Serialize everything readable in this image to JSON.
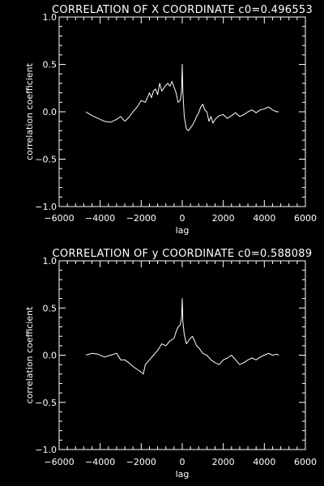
{
  "chart_data": [
    {
      "type": "line",
      "title": "CORRELATION OF X COORDINATE c0=0.496553",
      "xlabel": "lag",
      "ylabel": "correlation coefficient",
      "xlim": [
        -6000,
        6000
      ],
      "ylim": [
        -1.0,
        1.0
      ],
      "xticks": [
        -6000,
        -4000,
        -2000,
        0,
        2000,
        4000,
        6000
      ],
      "xtick_labels": [
        "−6000",
        "−4000",
        "−2000",
        "0",
        "2000",
        "4000",
        "6000"
      ],
      "yticks": [
        -1.0,
        -0.5,
        0.0,
        0.5,
        1.0
      ],
      "ytick_labels": [
        "−1.0",
        "−0.5",
        "0.0",
        "0.5",
        "1.0"
      ],
      "grid": false,
      "series": [
        {
          "x": [
            -4700,
            -4400,
            -4100,
            -3800,
            -3500,
            -3200,
            -3000,
            -2800,
            -2600,
            -2400,
            -2200,
            -2000,
            -1800,
            -1600,
            -1500,
            -1400,
            -1300,
            -1200,
            -1100,
            -1000,
            -900,
            -800,
            -700,
            -600,
            -500,
            -400,
            -300,
            -200,
            -100,
            -30,
            0,
            30,
            100,
            200,
            300,
            400,
            500,
            600,
            700,
            800,
            900,
            1000,
            1100,
            1200,
            1300,
            1400,
            1500,
            1600,
            1800,
            2000,
            2200,
            2400,
            2600,
            2800,
            3000,
            3200,
            3400,
            3600,
            3800,
            4000,
            4200,
            4400,
            4600,
            4700
          ],
          "y": [
            0.0,
            -0.04,
            -0.07,
            -0.1,
            -0.11,
            -0.08,
            -0.05,
            -0.1,
            -0.06,
            0.0,
            0.05,
            0.12,
            0.1,
            0.2,
            0.15,
            0.22,
            0.24,
            0.18,
            0.3,
            0.22,
            0.25,
            0.28,
            0.3,
            0.27,
            0.32,
            0.26,
            0.2,
            0.1,
            0.12,
            0.22,
            0.5,
            0.2,
            -0.05,
            -0.18,
            -0.2,
            -0.17,
            -0.14,
            -0.1,
            -0.05,
            -0.01,
            0.05,
            0.08,
            0.02,
            0.0,
            -0.1,
            -0.05,
            -0.12,
            -0.08,
            -0.04,
            -0.03,
            -0.07,
            -0.04,
            -0.01,
            -0.05,
            -0.03,
            0.0,
            0.02,
            -0.01,
            0.02,
            0.03,
            0.05,
            0.02,
            0.0,
            0.0
          ]
        }
      ]
    },
    {
      "type": "line",
      "title": "CORRELATION OF y COORDINATE c0=0.588089",
      "xlabel": "lag",
      "ylabel": "correlation coefficient",
      "xlim": [
        -6000,
        6000
      ],
      "ylim": [
        -1.0,
        1.0
      ],
      "xticks": [
        -6000,
        -4000,
        -2000,
        0,
        2000,
        4000,
        6000
      ],
      "xtick_labels": [
        "−6000",
        "−4000",
        "−2000",
        "0",
        "2000",
        "4000",
        "6000"
      ],
      "yticks": [
        -1.0,
        -0.5,
        0.0,
        0.5,
        1.0
      ],
      "ytick_labels": [
        "−1.0",
        "−0.5",
        "0.0",
        "0.5",
        "1.0"
      ],
      "grid": false,
      "series": [
        {
          "x": [
            -4700,
            -4400,
            -4100,
            -3800,
            -3500,
            -3200,
            -3000,
            -2800,
            -2600,
            -2400,
            -2200,
            -2000,
            -1900,
            -1800,
            -1600,
            -1400,
            -1200,
            -1000,
            -800,
            -600,
            -400,
            -300,
            -200,
            -100,
            -30,
            0,
            30,
            100,
            200,
            300,
            400,
            500,
            600,
            700,
            800,
            900,
            1000,
            1200,
            1400,
            1600,
            1800,
            2000,
            2200,
            2400,
            2600,
            2800,
            3000,
            3200,
            3400,
            3600,
            3800,
            4000,
            4200,
            4400,
            4600,
            4700
          ],
          "y": [
            0.0,
            0.02,
            0.01,
            -0.02,
            0.0,
            0.02,
            -0.05,
            -0.05,
            -0.08,
            -0.12,
            -0.15,
            -0.18,
            -0.2,
            -0.1,
            -0.05,
            0.0,
            0.05,
            0.12,
            0.1,
            0.15,
            0.18,
            0.25,
            0.3,
            0.32,
            0.4,
            0.6,
            0.35,
            0.22,
            0.12,
            0.15,
            0.18,
            0.2,
            0.15,
            0.1,
            0.08,
            0.05,
            0.02,
            0.0,
            -0.05,
            -0.08,
            -0.1,
            -0.05,
            -0.03,
            0.0,
            -0.05,
            -0.1,
            -0.08,
            -0.05,
            -0.03,
            -0.05,
            -0.02,
            0.0,
            0.02,
            0.0,
            0.01,
            0.0
          ]
        }
      ]
    }
  ]
}
